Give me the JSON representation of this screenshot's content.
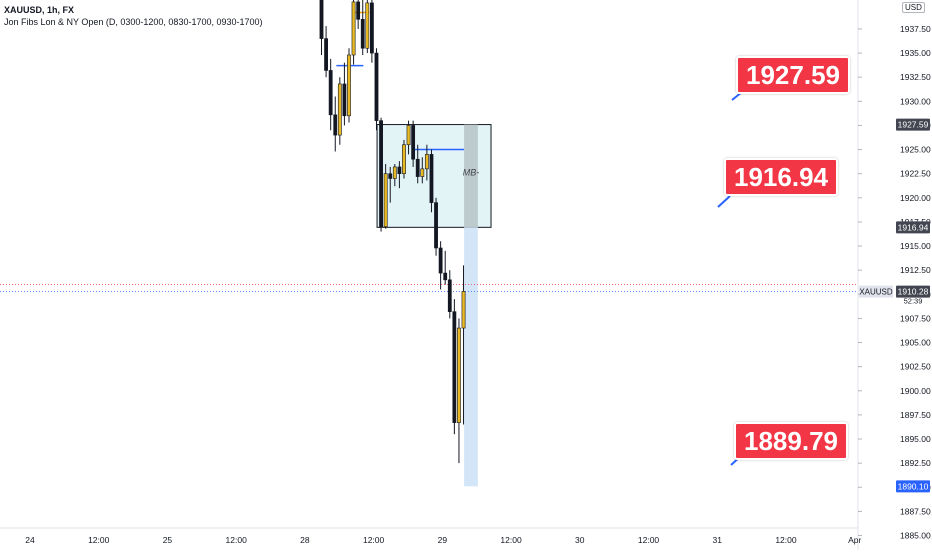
{
  "header": {
    "symbol_line": "XAUUSD, 1h, FX",
    "indicator_line": "Jon Fibs Lon & NY Open (D, 0300-1200, 0830-1700, 0930-1700)"
  },
  "currency_badge": "USD",
  "colors": {
    "up": "#e8b923",
    "down": "#131722",
    "zone_fill": "#e3f4f7",
    "zone_dark": "#b7c3c5",
    "target_fill": "#d3e6f7",
    "fib_blue": "#2962ff",
    "fib_orange": "#f0a80e",
    "callout_red": "#f23645",
    "price_label_blue": "#2962ff",
    "price_label_dark": "#434651"
  },
  "chart_data": {
    "type": "candlestick",
    "symbol": "XAUUSD",
    "timeframe": "1h",
    "ylim": [
      1883.5,
      1940.5
    ],
    "y_ticks": [
      "1885.00",
      "1887.50",
      "1890.00",
      "1892.50",
      "1895.00",
      "1897.50",
      "1900.00",
      "1902.50",
      "1905.00",
      "1907.50",
      "1910.00",
      "1912.50",
      "1915.00",
      "1917.50",
      "1920.00",
      "1922.50",
      "1925.00",
      "1927.50",
      "1930.00",
      "1932.50",
      "1935.00",
      "1937.50"
    ],
    "x_ticks": [
      {
        "label": "24",
        "hour": 0
      },
      {
        "label": "12:00",
        "hour": 12
      },
      {
        "label": "25",
        "hour": 24
      },
      {
        "label": "12:00",
        "hour": 36
      },
      {
        "label": "28",
        "hour": 48
      },
      {
        "label": "12:00",
        "hour": 60
      },
      {
        "label": "29",
        "hour": 72
      },
      {
        "label": "12:00",
        "hour": 84
      },
      {
        "label": "30",
        "hour": 96
      },
      {
        "label": "12:00",
        "hour": 108
      },
      {
        "label": "31",
        "hour": 120
      },
      {
        "label": "12:00",
        "hour": 132
      },
      {
        "label": "Apr",
        "hour": 144
      }
    ],
    "candles": [
      {
        "t": 50.9,
        "o": 1940.5,
        "h": 1941.0,
        "l": 1934.8,
        "c": 1936.5
      },
      {
        "t": 51.7,
        "o": 1936.5,
        "h": 1937.8,
        "l": 1932.5,
        "c": 1933.2
      },
      {
        "t": 52.5,
        "o": 1933.2,
        "h": 1934.4,
        "l": 1927.0,
        "c": 1928.6
      },
      {
        "t": 53.3,
        "o": 1928.6,
        "h": 1930.5,
        "l": 1924.8,
        "c": 1926.5
      },
      {
        "t": 54.1,
        "o": 1926.5,
        "h": 1932.5,
        "l": 1925.5,
        "c": 1931.8
      },
      {
        "t": 54.9,
        "o": 1931.8,
        "h": 1934.0,
        "l": 1927.5,
        "c": 1928.5
      },
      {
        "t": 55.7,
        "o": 1928.5,
        "h": 1935.5,
        "l": 1927.8,
        "c": 1934.8
      },
      {
        "t": 56.5,
        "o": 1934.8,
        "h": 1941.0,
        "l": 1933.8,
        "c": 1940.3
      },
      {
        "t": 57.3,
        "o": 1940.3,
        "h": 1941.0,
        "l": 1937.5,
        "c": 1938.5
      },
      {
        "t": 58.1,
        "o": 1938.5,
        "h": 1941.0,
        "l": 1934.8,
        "c": 1935.5
      },
      {
        "t": 58.9,
        "o": 1935.5,
        "h": 1940.8,
        "l": 1935.0,
        "c": 1940.2
      },
      {
        "t": 59.7,
        "o": 1940.2,
        "h": 1941.0,
        "l": 1934.0,
        "c": 1935.0
      },
      {
        "t": 60.5,
        "o": 1935.0,
        "h": 1935.5,
        "l": 1927.0,
        "c": 1928.0
      },
      {
        "t": 61.3,
        "o": 1928.0,
        "h": 1928.3,
        "l": 1916.5,
        "c": 1917.0
      },
      {
        "t": 62.1,
        "o": 1917.0,
        "h": 1923.5,
        "l": 1916.8,
        "c": 1922.5
      },
      {
        "t": 62.9,
        "o": 1922.5,
        "h": 1923.2,
        "l": 1919.5,
        "c": 1922.0
      },
      {
        "t": 63.7,
        "o": 1922.0,
        "h": 1923.5,
        "l": 1921.2,
        "c": 1923.2
      },
      {
        "t": 64.5,
        "o": 1923.2,
        "h": 1923.8,
        "l": 1921.0,
        "c": 1922.5
      },
      {
        "t": 65.3,
        "o": 1922.5,
        "h": 1926.0,
        "l": 1922.0,
        "c": 1925.5
      },
      {
        "t": 66.1,
        "o": 1925.5,
        "h": 1928.0,
        "l": 1924.5,
        "c": 1927.5
      },
      {
        "t": 66.9,
        "o": 1927.5,
        "h": 1928.0,
        "l": 1923.2,
        "c": 1924.0
      },
      {
        "t": 67.7,
        "o": 1924.0,
        "h": 1925.5,
        "l": 1921.5,
        "c": 1922.2
      },
      {
        "t": 68.5,
        "o": 1922.2,
        "h": 1924.2,
        "l": 1921.5,
        "c": 1923.0
      },
      {
        "t": 69.3,
        "o": 1923.0,
        "h": 1925.5,
        "l": 1921.8,
        "c": 1924.5
      },
      {
        "t": 70.1,
        "o": 1924.5,
        "h": 1925.0,
        "l": 1918.5,
        "c": 1919.5
      },
      {
        "t": 70.9,
        "o": 1919.5,
        "h": 1920.0,
        "l": 1914.0,
        "c": 1914.8
      },
      {
        "t": 71.7,
        "o": 1914.8,
        "h": 1915.5,
        "l": 1910.5,
        "c": 1912.2
      },
      {
        "t": 72.5,
        "o": 1912.2,
        "h": 1914.5,
        "l": 1911.0,
        "c": 1911.5
      },
      {
        "t": 73.3,
        "o": 1911.5,
        "h": 1912.5,
        "l": 1907.5,
        "c": 1908.2
      },
      {
        "t": 74.1,
        "o": 1908.2,
        "h": 1909.5,
        "l": 1895.5,
        "c": 1896.7
      },
      {
        "t": 74.9,
        "o": 1896.7,
        "h": 1907.5,
        "l": 1892.5,
        "c": 1906.5
      },
      {
        "t": 75.7,
        "o": 1906.5,
        "h": 1913.0,
        "l": 1896.5,
        "c": 1910.3
      }
    ],
    "zone": {
      "t_start": 60.6,
      "t_end": 80.5,
      "top": 1927.59,
      "bottom": 1916.94,
      "label": "MB-"
    },
    "dark_zone": {
      "t_start": 75.8,
      "t_end": 78.2,
      "top": 1927.59,
      "bottom": 1916.94
    },
    "target_zone": {
      "t_start": 75.8,
      "t_end": 78.2,
      "top": 1916.94,
      "bottom": 1890.1
    },
    "fib_lines": [
      {
        "price": 1925.0,
        "t_start": 66.8,
        "t_end": 75.8,
        "color": "blue"
      },
      {
        "price": 1933.7,
        "t_start": 53.5,
        "t_end": 58.2,
        "color": "blue"
      },
      {
        "price": 1939.2,
        "t_start": 56.4,
        "t_end": 59.3,
        "color": "orange"
      }
    ],
    "current_price": 1910.28,
    "countdown": "52:39",
    "axis_labels": [
      {
        "price": 1927.59,
        "text": "1927.59",
        "style": "dark"
      },
      {
        "price": 1916.94,
        "text": "1916.94",
        "style": "dark"
      },
      {
        "price": 1910.28,
        "text": "1910.28",
        "style": "dark"
      },
      {
        "price": 1890.1,
        "text": "1890.10",
        "style": "blue"
      }
    ],
    "symbol_tag": "XAUUSD",
    "callouts": [
      {
        "text": "1927.59",
        "price": 1927.59
      },
      {
        "text": "1916.94",
        "price": 1916.94
      },
      {
        "text": "1889.79",
        "price": 1889.79
      }
    ]
  }
}
